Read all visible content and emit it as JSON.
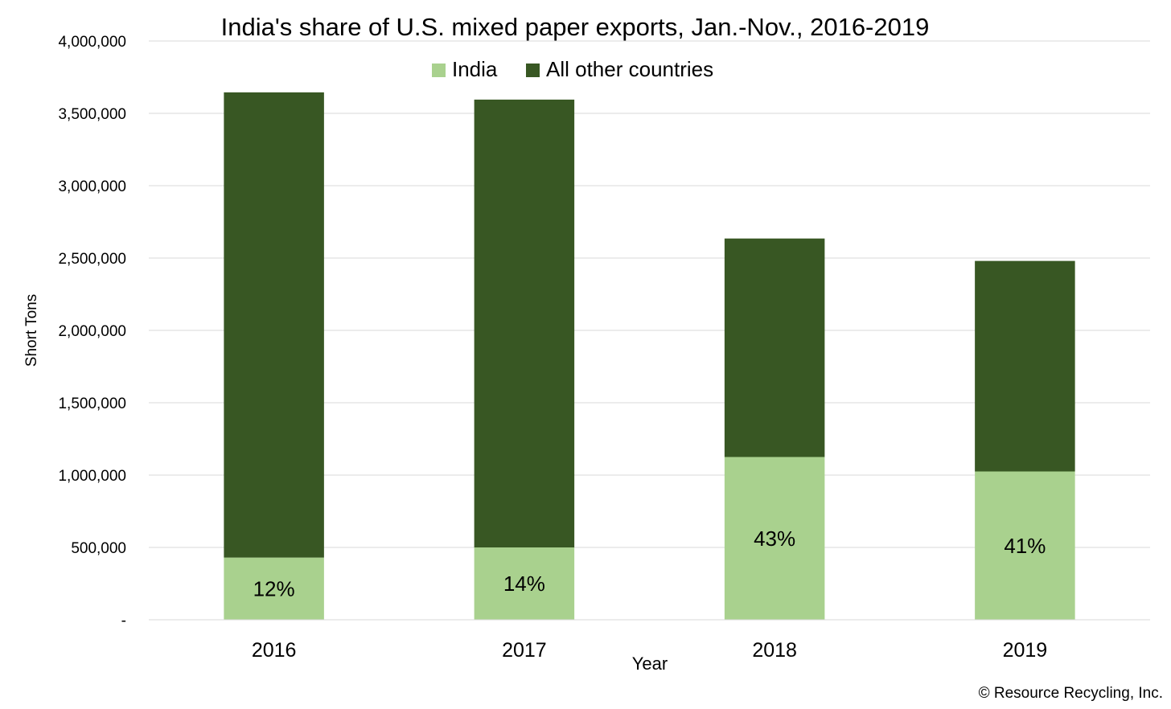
{
  "chart_data": {
    "type": "bar",
    "stacked": true,
    "title": "India's share of U.S. mixed paper exports, Jan.-Nov., 2016-2019",
    "xlabel": "Year",
    "ylabel": "Short Tons",
    "categories": [
      "2016",
      "2017",
      "2018",
      "2019"
    ],
    "series": [
      {
        "name": "India",
        "color": "#a9d18e",
        "values": [
          430000,
          500000,
          1125000,
          1025000
        ]
      },
      {
        "name": "All other countries",
        "color": "#385723",
        "values": [
          3215000,
          3095000,
          1510000,
          1455000
        ]
      }
    ],
    "data_labels": [
      "12%",
      "14%",
      "43%",
      "41%"
    ],
    "ylim": [
      0,
      4000000
    ],
    "yticks": [
      0,
      500000,
      1000000,
      1500000,
      2000000,
      2500000,
      3000000,
      3500000,
      4000000
    ],
    "ytick_labels": [
      "-",
      "500,000",
      "1,000,000",
      "1,500,000",
      "2,000,000",
      "2,500,000",
      "3,000,000",
      "3,500,000",
      "4,000,000"
    ],
    "grid": true,
    "legend_position": "top-center",
    "gridline_color": "#d9d9d9"
  },
  "credit": "© Resource Recycling, Inc."
}
